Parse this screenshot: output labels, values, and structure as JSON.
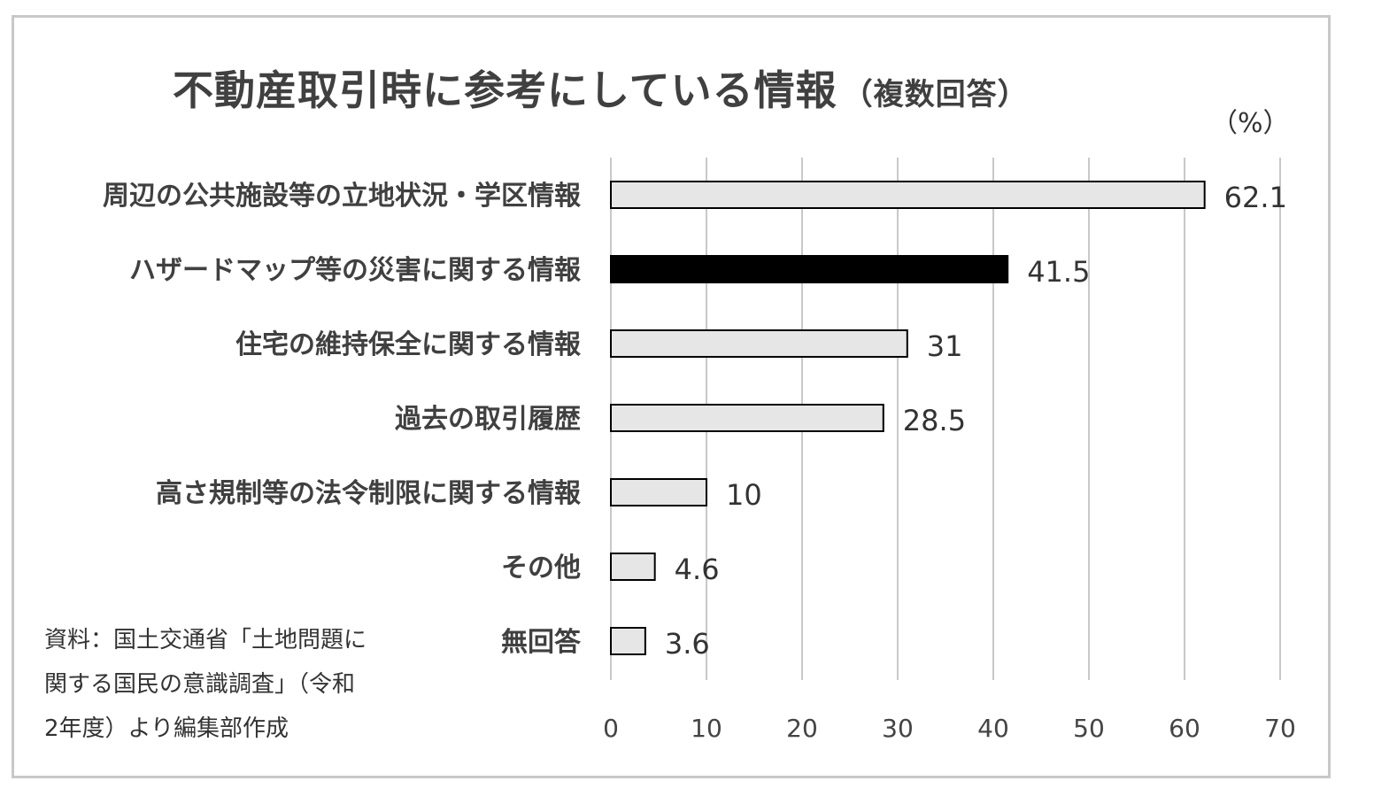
{
  "chart_data": {
    "type": "bar",
    "orientation": "horizontal",
    "title": "不動産取引時に参考にしている情報",
    "subtitle": "（複数回答）",
    "unit_label": "（%）",
    "categories": [
      "周辺の公共施設等の立地状況・学区情報",
      "ハザードマップ等の災害に関する情報",
      "住宅の維持保全に関する情報",
      "過去の取引履歴",
      "高さ規制等の法令制限に関する情報",
      "その他",
      "無回答"
    ],
    "values": [
      62.1,
      41.5,
      31,
      28.5,
      10,
      4.6,
      3.6
    ],
    "value_labels": [
      "62.1",
      "41.5",
      "31",
      "28.5",
      "10",
      "4.6",
      "3.6"
    ],
    "highlight_index": 1,
    "xlim": [
      0,
      70
    ],
    "xticks": [
      "0",
      "10",
      "20",
      "30",
      "40",
      "50",
      "60",
      "70"
    ],
    "grid": true,
    "colors": {
      "bar_fill": "#e6e6e6",
      "bar_highlight": "#000000",
      "bar_stroke": "#000000",
      "grid": "#c8c8c8"
    }
  },
  "source": {
    "line1": "資料：国土交通省「土地問題に",
    "line2": "関する国民の意識調査」（令和",
    "line3": "2年度）より編集部作成"
  }
}
